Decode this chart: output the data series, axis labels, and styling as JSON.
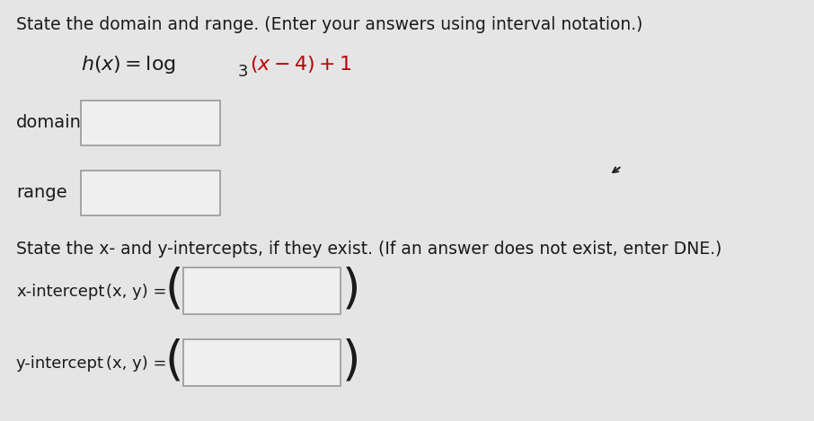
{
  "background_color": "#e5e5e5",
  "title_line1": "State the domain and range. (Enter your answers using interval notation.)",
  "domain_label": "domain",
  "range_label": "range",
  "intercepts_line": "State the x- and y-intercepts, if they exist. (If an answer does not exist, enter DNE.)",
  "x_intercept_label": "x-intercept",
  "y_intercept_label": "y-intercept",
  "xy_label": "(x, y) =",
  "text_color": "#1a1a1a",
  "red_color": "#bb0000",
  "box_fill": "#efefef",
  "box_edge": "#999999",
  "font_size_main": 13.5,
  "font_size_function": 15,
  "font_size_labels": 13
}
